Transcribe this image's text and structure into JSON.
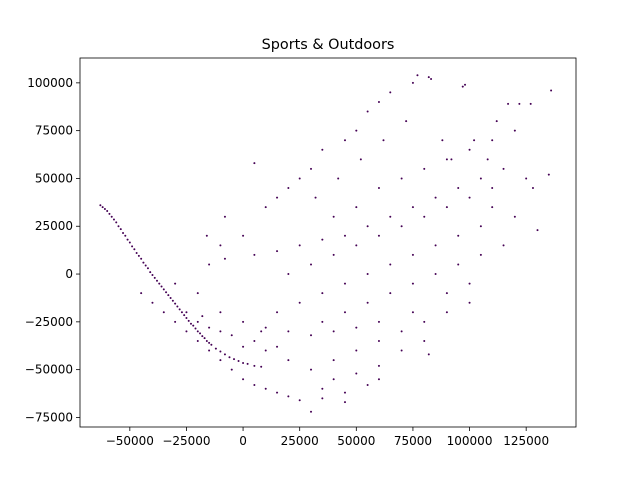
{
  "chart_data": {
    "type": "scatter",
    "title": "Sports & Outdoors",
    "xlabel": "",
    "ylabel": "",
    "xlim": [
      -72000,
      147000
    ],
    "ylim": [
      -80000,
      113000
    ],
    "x_ticks": [
      -50000,
      -25000,
      0,
      25000,
      50000,
      75000,
      100000,
      125000
    ],
    "x_tick_labels": [
      "−50000",
      "−25000",
      "0",
      "25000",
      "50000",
      "75000",
      "100000",
      "125000"
    ],
    "y_ticks": [
      -75000,
      -50000,
      -25000,
      0,
      25000,
      50000,
      75000,
      100000
    ],
    "y_tick_labels": [
      "−75000",
      "−50000",
      "−25000",
      "0",
      "25000",
      "50000",
      "75000",
      "100000"
    ],
    "grid": false,
    "legend": "none",
    "colors": {
      "points": "#440154"
    },
    "series": [
      {
        "values": [
          [
            -63000,
            36000
          ],
          [
            -62000,
            35000
          ],
          [
            -61000,
            34000
          ],
          [
            -60000,
            33000
          ],
          [
            -59000,
            31500
          ],
          [
            -58000,
            30000
          ],
          [
            -57000,
            28500
          ],
          [
            -56000,
            27000
          ],
          [
            -55000,
            25000
          ],
          [
            -54000,
            23500
          ],
          [
            -53000,
            21500
          ],
          [
            -52000,
            20000
          ],
          [
            -51000,
            18000
          ],
          [
            -50000,
            16500
          ],
          [
            -49000,
            14500
          ],
          [
            -48000,
            13000
          ],
          [
            -47000,
            11000
          ],
          [
            -46000,
            9500
          ],
          [
            -45000,
            8000
          ],
          [
            -44000,
            6000
          ],
          [
            -43000,
            4500
          ],
          [
            -42000,
            3000
          ],
          [
            -41000,
            1000
          ],
          [
            -40000,
            -500
          ],
          [
            -39000,
            -2000
          ],
          [
            -38000,
            -3500
          ],
          [
            -37000,
            -5000
          ],
          [
            -36000,
            -6500
          ],
          [
            -35000,
            -8000
          ],
          [
            -34000,
            -9500
          ],
          [
            -33000,
            -11000
          ],
          [
            -32000,
            -12500
          ],
          [
            -31000,
            -14000
          ],
          [
            -30000,
            -15500
          ],
          [
            -29000,
            -17000
          ],
          [
            -28000,
            -18500
          ],
          [
            -27000,
            -20000
          ],
          [
            -26000,
            -21500
          ],
          [
            -25000,
            -23000
          ],
          [
            -24000,
            -24500
          ],
          [
            -23000,
            -26000
          ],
          [
            -22000,
            -27000
          ],
          [
            -21000,
            -28500
          ],
          [
            -20000,
            -30000
          ],
          [
            -19000,
            -31000
          ],
          [
            -18000,
            -32500
          ],
          [
            -17000,
            -33500
          ],
          [
            -16000,
            -35000
          ],
          [
            -15000,
            -36000
          ],
          [
            -14000,
            -37000
          ],
          [
            -12000,
            -39000
          ],
          [
            -10000,
            -40500
          ],
          [
            -8000,
            -42000
          ],
          [
            -6000,
            -43500
          ],
          [
            -4000,
            -44500
          ],
          [
            -2000,
            -45500
          ],
          [
            0,
            -46500
          ],
          [
            2000,
            -47000
          ],
          [
            5000,
            -48000
          ],
          [
            8000,
            -48500
          ],
          [
            -45000,
            -10000
          ],
          [
            -40000,
            -15000
          ],
          [
            -35000,
            -20000
          ],
          [
            -30000,
            -25000
          ],
          [
            -25000,
            -30000
          ],
          [
            -20000,
            -35000
          ],
          [
            -15000,
            -40000
          ],
          [
            -10000,
            -45000
          ],
          [
            -5000,
            -50000
          ],
          [
            0,
            -55000
          ],
          [
            5000,
            -58000
          ],
          [
            10000,
            -60000
          ],
          [
            15000,
            -62000
          ],
          [
            20000,
            -64000
          ],
          [
            30000,
            -72000
          ],
          [
            25000,
            -66000
          ],
          [
            35000,
            -65000
          ],
          [
            45000,
            -67000
          ],
          [
            55000,
            -58000
          ],
          [
            60000,
            -55000
          ],
          [
            -30000,
            -5000
          ],
          [
            -20000,
            -10000
          ],
          [
            -10000,
            -20000
          ],
          [
            0,
            -25000
          ],
          [
            10000,
            -28000
          ],
          [
            20000,
            -30000
          ],
          [
            30000,
            -32000
          ],
          [
            40000,
            -30000
          ],
          [
            50000,
            -28000
          ],
          [
            60000,
            -25000
          ],
          [
            -15000,
            5000
          ],
          [
            -8000,
            8000
          ],
          [
            5000,
            10000
          ],
          [
            15000,
            12000
          ],
          [
            25000,
            15000
          ],
          [
            35000,
            18000
          ],
          [
            45000,
            20000
          ],
          [
            55000,
            25000
          ],
          [
            65000,
            30000
          ],
          [
            75000,
            35000
          ],
          [
            85000,
            40000
          ],
          [
            95000,
            45000
          ],
          [
            105000,
            50000
          ],
          [
            115000,
            55000
          ],
          [
            125000,
            50000
          ],
          [
            135000,
            52000
          ],
          [
            130000,
            23000
          ],
          [
            128000,
            45000
          ],
          [
            120000,
            30000
          ],
          [
            110000,
            35000
          ],
          [
            10000,
            -40000
          ],
          [
            20000,
            -45000
          ],
          [
            30000,
            -50000
          ],
          [
            40000,
            -45000
          ],
          [
            50000,
            -40000
          ],
          [
            60000,
            -35000
          ],
          [
            70000,
            -30000
          ],
          [
            80000,
            -25000
          ],
          [
            90000,
            -20000
          ],
          [
            100000,
            -15000
          ],
          [
            15000,
            -20000
          ],
          [
            25000,
            -15000
          ],
          [
            35000,
            -10000
          ],
          [
            45000,
            -5000
          ],
          [
            55000,
            0
          ],
          [
            65000,
            5000
          ],
          [
            75000,
            10000
          ],
          [
            85000,
            15000
          ],
          [
            95000,
            20000
          ],
          [
            105000,
            25000
          ],
          [
            20000,
            0
          ],
          [
            30000,
            5000
          ],
          [
            40000,
            10000
          ],
          [
            50000,
            15000
          ],
          [
            60000,
            20000
          ],
          [
            70000,
            25000
          ],
          [
            80000,
            30000
          ],
          [
            90000,
            35000
          ],
          [
            100000,
            40000
          ],
          [
            110000,
            45000
          ],
          [
            40000,
            30000
          ],
          [
            50000,
            35000
          ],
          [
            60000,
            45000
          ],
          [
            70000,
            50000
          ],
          [
            80000,
            55000
          ],
          [
            90000,
            60000
          ],
          [
            100000,
            65000
          ],
          [
            110000,
            70000
          ],
          [
            120000,
            75000
          ],
          [
            117000,
            89000
          ],
          [
            122000,
            89000
          ],
          [
            127000,
            89000
          ],
          [
            136000,
            96000
          ],
          [
            97000,
            98000
          ],
          [
            98000,
            99000
          ],
          [
            77000,
            104000
          ],
          [
            82000,
            103000
          ],
          [
            83000,
            102000
          ],
          [
            75000,
            100000
          ],
          [
            65000,
            95000
          ],
          [
            60000,
            90000
          ],
          [
            55000,
            85000
          ],
          [
            50000,
            75000
          ],
          [
            45000,
            70000
          ],
          [
            35000,
            65000
          ],
          [
            30000,
            55000
          ],
          [
            25000,
            50000
          ],
          [
            20000,
            45000
          ],
          [
            15000,
            40000
          ],
          [
            10000,
            35000
          ],
          [
            5000,
            58000
          ],
          [
            -8000,
            30000
          ],
          [
            -16000,
            20000
          ],
          [
            -10000,
            15000
          ],
          [
            0,
            20000
          ],
          [
            -20000,
            -25000
          ],
          [
            -15000,
            -28000
          ],
          [
            -5000,
            -32000
          ],
          [
            5000,
            -35000
          ],
          [
            15000,
            -38000
          ],
          [
            -25000,
            -20000
          ],
          [
            -18000,
            -22000
          ],
          [
            -10000,
            -30000
          ],
          [
            0,
            -38000
          ],
          [
            8000,
            -30000
          ],
          [
            35000,
            -25000
          ],
          [
            45000,
            -20000
          ],
          [
            55000,
            -15000
          ],
          [
            65000,
            -10000
          ],
          [
            75000,
            -5000
          ],
          [
            85000,
            0
          ],
          [
            95000,
            5000
          ],
          [
            105000,
            10000
          ],
          [
            115000,
            15000
          ],
          [
            70000,
            -40000
          ],
          [
            80000,
            -35000
          ],
          [
            82000,
            -42000
          ],
          [
            75000,
            -20000
          ],
          [
            90000,
            -10000
          ],
          [
            100000,
            -5000
          ],
          [
            40000,
            -55000
          ],
          [
            50000,
            -52000
          ],
          [
            60000,
            -48000
          ],
          [
            35000,
            -60000
          ],
          [
            45000,
            -62000
          ],
          [
            88000,
            70000
          ],
          [
            92000,
            60000
          ],
          [
            102000,
            70000
          ],
          [
            108000,
            60000
          ],
          [
            112000,
            80000
          ],
          [
            72000,
            80000
          ],
          [
            62000,
            70000
          ],
          [
            52000,
            60000
          ],
          [
            42000,
            50000
          ],
          [
            32000,
            40000
          ]
        ]
      }
    ]
  }
}
